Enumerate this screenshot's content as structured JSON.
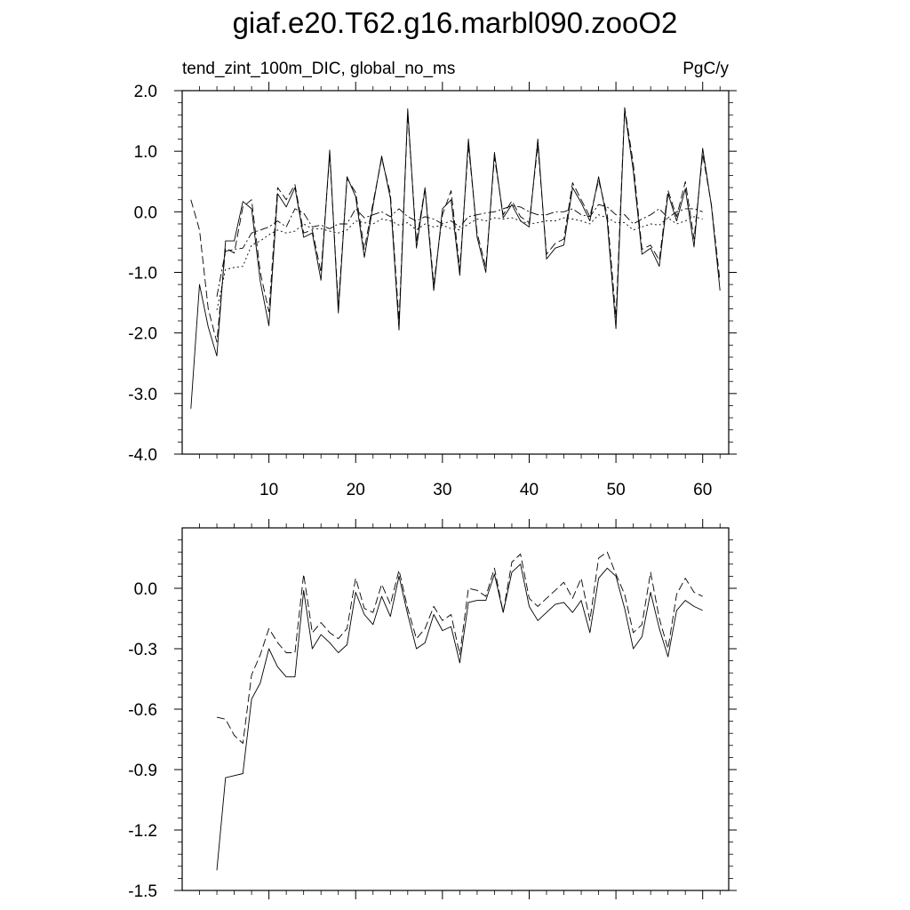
{
  "title": "giaf.e20.T62.g16.marbl090.zooO2",
  "colors": {
    "ink": "#000000",
    "background": "#ffffff"
  },
  "chart_data": [
    {
      "type": "line",
      "left_label": "tend_zint_100m_DIC, global_no_ms",
      "right_label": "PgC/y",
      "xlim": [
        0,
        63
      ],
      "ylim": [
        -4,
        2
      ],
      "xticks": [
        10,
        20,
        30,
        40,
        50,
        60
      ],
      "yticks": [
        -4,
        -3,
        -2,
        -1,
        0,
        1,
        2
      ],
      "ytick_labels": [
        "-4.0",
        "-3.0",
        "-2.0",
        "-1.0",
        "0.0",
        "1.0",
        "2.0"
      ],
      "grid": false,
      "legend": "none",
      "series": [
        {
          "style": "solid",
          "x": [
            1,
            2,
            3,
            4,
            5,
            6,
            7,
            8,
            9,
            10,
            11,
            12,
            13,
            14,
            15,
            16,
            17,
            18,
            19,
            20,
            21,
            22,
            23,
            24,
            25,
            26,
            27,
            28,
            29,
            30,
            31,
            32,
            33,
            34,
            35,
            36,
            37,
            38,
            39,
            40,
            41,
            42,
            43,
            44,
            45,
            46,
            47,
            48,
            49,
            50,
            51,
            52,
            53,
            54,
            55,
            56,
            57,
            58,
            59,
            60,
            61,
            62
          ],
          "values": [
            -3.25,
            -1.2,
            -1.9,
            -2.38,
            -0.48,
            -0.48,
            0.17,
            0.05,
            -1.15,
            -1.88,
            0.3,
            0.08,
            0.4,
            -0.42,
            -0.35,
            -1.13,
            1.02,
            -1.67,
            0.58,
            0.25,
            -0.75,
            0.1,
            0.92,
            0.22,
            -1.95,
            1.7,
            -0.6,
            0.38,
            -1.3,
            0.05,
            0.2,
            -1.05,
            1.2,
            -0.42,
            -1.0,
            0.98,
            -0.1,
            0.12,
            -0.15,
            -0.25,
            1.2,
            -0.78,
            -0.6,
            -0.55,
            0.4,
            0.15,
            -0.15,
            0.58,
            -0.15,
            -1.93,
            1.68,
            0.68,
            -0.7,
            -0.6,
            -0.9,
            0.3,
            -0.15,
            0.38,
            -0.58,
            1.05,
            0.1,
            -1.3
          ]
        },
        {
          "style": "dashed",
          "x": [
            1,
            2,
            3,
            4,
            5,
            6,
            7,
            8,
            9,
            10,
            11,
            12,
            13,
            14,
            15,
            16,
            17,
            18,
            19,
            20,
            21,
            22,
            23,
            24,
            25,
            26,
            27,
            28,
            29,
            30,
            31,
            32,
            33,
            34,
            35,
            36,
            37,
            38,
            39,
            40,
            41,
            42,
            43,
            44,
            45,
            46,
            47,
            48,
            49,
            50,
            51,
            52,
            53,
            54,
            55,
            56,
            57,
            58,
            59,
            60,
            61,
            62
          ],
          "values": [
            0.2,
            -0.3,
            -1.6,
            -2.15,
            -0.6,
            -0.68,
            0.08,
            0.2,
            -1.0,
            -1.65,
            0.4,
            0.2,
            0.45,
            -0.35,
            -0.3,
            -1.0,
            0.95,
            -1.55,
            0.55,
            0.32,
            -0.62,
            0.15,
            0.88,
            0.3,
            -1.8,
            1.62,
            -0.5,
            0.4,
            -1.2,
            -0.05,
            0.35,
            -0.95,
            1.1,
            -0.35,
            -0.92,
            0.9,
            -0.05,
            0.18,
            -0.08,
            -0.18,
            1.1,
            -0.7,
            -0.52,
            -0.45,
            0.48,
            0.2,
            -0.08,
            0.52,
            -0.05,
            -1.75,
            1.72,
            0.8,
            -0.62,
            -0.55,
            -0.8,
            0.35,
            -0.08,
            0.5,
            -0.45,
            0.95,
            0.12,
            -1.15
          ]
        },
        {
          "style": "dotted",
          "x": [
            4,
            5,
            6,
            7,
            8,
            9,
            10,
            11,
            12,
            13,
            14,
            15,
            16,
            17,
            18,
            19,
            20,
            21,
            22,
            23,
            24,
            25,
            26,
            27,
            28,
            29,
            30,
            31,
            32,
            33,
            34,
            35,
            36,
            37,
            38,
            39,
            40,
            41,
            42,
            43,
            44,
            45,
            46,
            47,
            48,
            49,
            50,
            51,
            52,
            53,
            54,
            55,
            56,
            57,
            58,
            59,
            60
          ],
          "values": [
            -1.62,
            -0.95,
            -0.92,
            -0.9,
            -0.55,
            -0.48,
            -0.38,
            -0.3,
            -0.35,
            -0.32,
            -0.2,
            -0.28,
            -0.28,
            -0.32,
            -0.35,
            -0.3,
            -0.15,
            -0.18,
            -0.2,
            -0.12,
            -0.15,
            -0.22,
            -0.18,
            -0.3,
            -0.2,
            -0.25,
            -0.22,
            -0.28,
            -0.3,
            -0.2,
            -0.12,
            -0.15,
            -0.1,
            -0.12,
            -0.1,
            -0.15,
            -0.2,
            -0.18,
            -0.15,
            -0.15,
            -0.1,
            -0.12,
            -0.15,
            -0.2,
            -0.05,
            -0.1,
            -0.18,
            -0.18,
            -0.3,
            -0.25,
            -0.2,
            -0.22,
            -0.1,
            -0.2,
            -0.15,
            -0.08,
            -0.12
          ]
        },
        {
          "style": "dash-dot",
          "x": [
            4,
            5,
            6,
            7,
            8,
            9,
            10,
            11,
            12,
            13,
            14,
            15,
            16,
            17,
            18,
            19,
            20,
            21,
            22,
            23,
            24,
            25,
            26,
            27,
            28,
            29,
            30,
            31,
            32,
            33,
            34,
            35,
            36,
            37,
            38,
            39,
            40,
            41,
            42,
            43,
            44,
            45,
            46,
            47,
            48,
            49,
            50,
            51,
            52,
            53,
            54,
            55,
            56,
            57,
            58,
            59,
            60
          ],
          "values": [
            -1.4,
            -0.65,
            -0.62,
            -0.6,
            -0.35,
            -0.3,
            -0.25,
            -0.15,
            -0.25,
            0.05,
            -0.02,
            -0.25,
            -0.22,
            -0.28,
            -0.2,
            -0.2,
            0.05,
            -0.1,
            -0.05,
            0.0,
            -0.08,
            0.05,
            -0.08,
            -0.15,
            -0.08,
            -0.12,
            -0.2,
            -0.15,
            -0.25,
            -0.08,
            -0.05,
            -0.02,
            0.0,
            0.05,
            0.1,
            0.08,
            0.0,
            -0.05,
            -0.05,
            0.0,
            0.0,
            0.05,
            -0.05,
            -0.08,
            0.12,
            0.08,
            -0.05,
            -0.05,
            -0.2,
            -0.12,
            -0.05,
            0.05,
            -0.1,
            0.0,
            0.05,
            0.05,
            0.0
          ]
        }
      ]
    },
    {
      "type": "line",
      "xlim": [
        0,
        63
      ],
      "ylim": [
        -1.5,
        0.3
      ],
      "xticks": [
        10,
        20,
        30,
        40,
        50,
        60
      ],
      "yticks": [
        -1.5,
        -1.2,
        -0.9,
        -0.6,
        -0.3,
        0.0
      ],
      "ytick_labels": [
        "-1.5",
        "-1.2",
        "-0.9",
        "-0.6",
        "-0.3",
        "0.0"
      ],
      "grid": false,
      "legend": "none",
      "series": [
        {
          "style": "solid",
          "x": [
            4,
            5,
            6,
            7,
            8,
            9,
            10,
            11,
            12,
            13,
            14,
            15,
            16,
            17,
            18,
            19,
            20,
            21,
            22,
            23,
            24,
            25,
            26,
            27,
            28,
            29,
            30,
            31,
            32,
            33,
            34,
            35,
            36,
            37,
            38,
            39,
            40,
            41,
            42,
            43,
            44,
            45,
            46,
            47,
            48,
            49,
            50,
            51,
            52,
            53,
            54,
            55,
            56,
            57,
            58,
            59,
            60
          ],
          "values": [
            -1.4,
            -0.94,
            -0.93,
            -0.92,
            -0.55,
            -0.47,
            -0.3,
            -0.39,
            -0.44,
            -0.44,
            -0.01,
            -0.3,
            -0.23,
            -0.27,
            -0.32,
            -0.28,
            -0.02,
            -0.13,
            -0.18,
            -0.04,
            -0.14,
            0.06,
            -0.13,
            -0.3,
            -0.27,
            -0.13,
            -0.21,
            -0.19,
            -0.37,
            -0.07,
            -0.06,
            -0.06,
            0.07,
            -0.12,
            0.08,
            0.12,
            -0.09,
            -0.16,
            -0.12,
            -0.08,
            -0.07,
            -0.12,
            -0.06,
            -0.22,
            0.05,
            0.1,
            0.06,
            -0.1,
            -0.3,
            -0.24,
            -0.02,
            -0.2,
            -0.34,
            -0.11,
            -0.06,
            -0.09,
            -0.11
          ]
        },
        {
          "style": "dashed",
          "x": [
            4,
            5,
            6,
            7,
            8,
            9,
            10,
            11,
            12,
            13,
            14,
            15,
            16,
            17,
            18,
            19,
            20,
            21,
            22,
            23,
            24,
            25,
            26,
            27,
            28,
            29,
            30,
            31,
            32,
            33,
            34,
            35,
            36,
            37,
            38,
            39,
            40,
            41,
            42,
            43,
            44,
            45,
            46,
            47,
            48,
            49,
            50,
            51,
            52,
            53,
            54,
            55,
            56,
            57,
            58,
            59,
            60
          ],
          "values": [
            -0.64,
            -0.65,
            -0.73,
            -0.77,
            -0.43,
            -0.33,
            -0.2,
            -0.27,
            -0.32,
            -0.32,
            0.07,
            -0.22,
            -0.17,
            -0.22,
            -0.25,
            -0.2,
            0.05,
            -0.1,
            -0.12,
            0.02,
            -0.08,
            0.09,
            -0.1,
            -0.25,
            -0.2,
            -0.09,
            -0.16,
            -0.13,
            -0.33,
            0.0,
            -0.01,
            -0.04,
            0.1,
            -0.12,
            0.13,
            0.17,
            -0.05,
            -0.09,
            -0.05,
            -0.01,
            0.03,
            -0.05,
            0.05,
            -0.16,
            0.15,
            0.18,
            0.07,
            -0.03,
            -0.22,
            -0.18,
            0.08,
            -0.15,
            -0.3,
            -0.03,
            0.05,
            -0.02,
            -0.04
          ]
        }
      ]
    }
  ]
}
